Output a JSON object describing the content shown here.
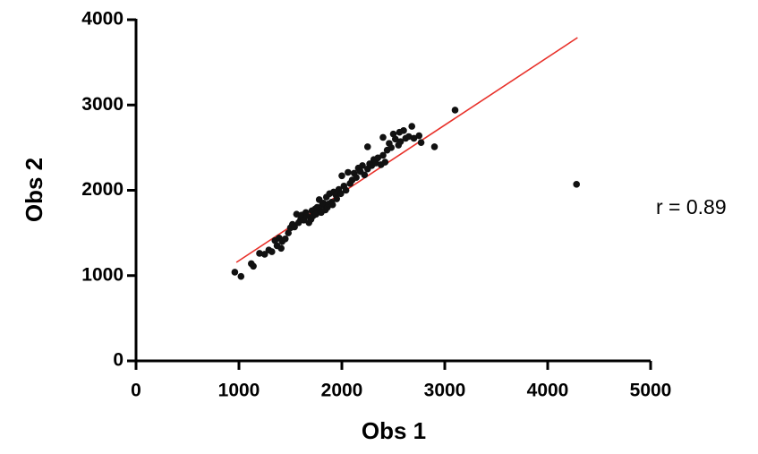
{
  "chart_data": {
    "type": "scatter",
    "xlabel": "Obs 1",
    "ylabel": "Obs 2",
    "annotation": "r = 0.89",
    "xlim": [
      0,
      5000
    ],
    "xticks": [
      0,
      1000,
      2000,
      3000,
      4000,
      5000
    ],
    "ylim": [
      0,
      4000
    ],
    "yticks": [
      0,
      1000,
      2000,
      3000,
      4000
    ],
    "color": "#111111",
    "x": [
      960,
      1020,
      1120,
      1140,
      1200,
      1250,
      1290,
      1320,
      1350,
      1370,
      1390,
      1410,
      1420,
      1450,
      1480,
      1500,
      1520,
      1540,
      1560,
      1580,
      1600,
      1610,
      1630,
      1650,
      1660,
      1680,
      1700,
      1710,
      1720,
      1740,
      1750,
      1760,
      1780,
      1790,
      1800,
      1810,
      1820,
      1840,
      1850,
      1860,
      1870,
      1880,
      1900,
      1910,
      1920,
      1940,
      1950,
      1970,
      1990,
      2000,
      2020,
      2040,
      2060,
      2080,
      2100,
      2120,
      2140,
      2160,
      2180,
      2200,
      2220,
      2250,
      2270,
      2290,
      2310,
      2330,
      2350,
      2380,
      2400,
      2420,
      2440,
      2460,
      2480,
      2500,
      2520,
      2550,
      2570,
      2600,
      2620,
      2650,
      2680,
      2700,
      2750,
      2770,
      2900,
      3100,
      4280,
      2250,
      2400,
      2560
    ],
    "values": [
      1040,
      990,
      1140,
      1110,
      1260,
      1250,
      1300,
      1280,
      1410,
      1350,
      1440,
      1320,
      1400,
      1430,
      1500,
      1560,
      1600,
      1570,
      1720,
      1620,
      1660,
      1710,
      1650,
      1740,
      1700,
      1620,
      1660,
      1760,
      1700,
      1780,
      1720,
      1800,
      1890,
      1760,
      1740,
      1830,
      1850,
      1770,
      1920,
      1800,
      1840,
      1960,
      1860,
      1830,
      1980,
      1950,
      1900,
      2010,
      1960,
      2170,
      2050,
      2000,
      2210,
      2080,
      2120,
      2200,
      2150,
      2260,
      2220,
      2290,
      2180,
      2250,
      2310,
      2290,
      2360,
      2320,
      2380,
      2300,
      2410,
      2330,
      2470,
      2550,
      2500,
      2660,
      2600,
      2530,
      2570,
      2700,
      2610,
      2630,
      2750,
      2610,
      2640,
      2560,
      2510,
      2940,
      2070,
      2510,
      2620,
      2680
    ],
    "fit_line": {
      "x": [
        975,
        4290
      ],
      "y": [
        1155,
        3790
      ],
      "color": "#e8312a"
    }
  }
}
